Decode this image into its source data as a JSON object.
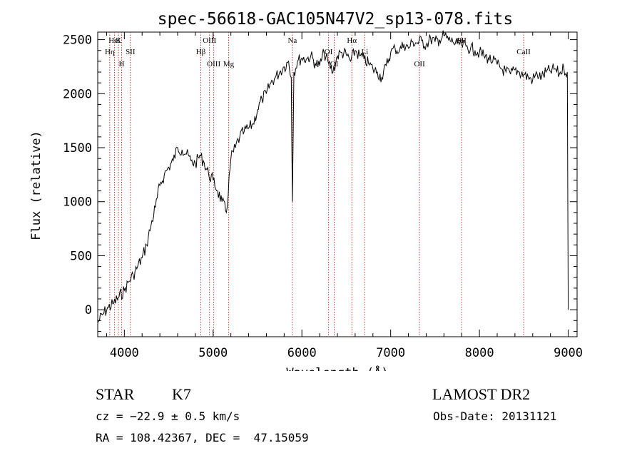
{
  "chart_data": {
    "type": "line",
    "title": "spec-56618-GAC105N47V2_sp13-078.fits",
    "xlabel": "Wavelength (Å)",
    "ylabel": "Flux (relative)",
    "xlim": [
      3700,
      9100
    ],
    "ylim": [
      -250,
      2570
    ],
    "xticks": [
      4000,
      5000,
      6000,
      7000,
      8000,
      9000
    ],
    "yticks": [
      0,
      500,
      1000,
      1500,
      2000,
      2500
    ],
    "xtick_labels": [
      "4000",
      "5000",
      "6000",
      "7000",
      "8000",
      "9000"
    ],
    "ytick_labels": [
      "0",
      "500",
      "1000",
      "1500",
      "2000",
      "2500"
    ],
    "series": [
      {
        "name": "flux",
        "x": [
          3700,
          3760,
          3820,
          3880,
          3940,
          4000,
          4050,
          4100,
          4150,
          4200,
          4250,
          4300,
          4350,
          4400,
          4450,
          4500,
          4550,
          4600,
          4650,
          4700,
          4750,
          4800,
          4850,
          4900,
          4950,
          5000,
          5050,
          5100,
          5150,
          5200,
          5250,
          5300,
          5350,
          5400,
          5450,
          5500,
          5550,
          5600,
          5650,
          5700,
          5750,
          5800,
          5850,
          5880,
          5893,
          5910,
          5950,
          6000,
          6050,
          6100,
          6150,
          6200,
          6250,
          6300,
          6350,
          6400,
          6450,
          6500,
          6550,
          6600,
          6650,
          6700,
          6750,
          6800,
          6850,
          6900,
          6950,
          7000,
          7050,
          7100,
          7150,
          7200,
          7250,
          7300,
          7350,
          7400,
          7450,
          7500,
          7550,
          7600,
          7650,
          7700,
          7750,
          7800,
          7850,
          7900,
          7950,
          8000,
          8050,
          8100,
          8150,
          8200,
          8250,
          8300,
          8350,
          8400,
          8450,
          8500,
          8550,
          8600,
          8650,
          8700,
          8750,
          8800,
          8850,
          8900,
          8950,
          8990,
          9000
        ],
        "y": [
          -120,
          -40,
          20,
          60,
          120,
          180,
          260,
          320,
          400,
          480,
          600,
          780,
          950,
          1150,
          1250,
          1320,
          1380,
          1500,
          1480,
          1440,
          1380,
          1350,
          1430,
          1360,
          1250,
          1200,
          1100,
          1000,
          900,
          1400,
          1500,
          1600,
          1650,
          1680,
          1720,
          1850,
          1950,
          2000,
          2100,
          2150,
          2200,
          2250,
          2300,
          2150,
          1000,
          2200,
          2300,
          2330,
          2320,
          2350,
          2280,
          2260,
          2380,
          2280,
          2200,
          2350,
          2380,
          2360,
          2300,
          2400,
          2350,
          2320,
          2280,
          2230,
          2200,
          2150,
          2260,
          2380,
          2420,
          2400,
          2460,
          2420,
          2480,
          2470,
          2490,
          2450,
          2510,
          2480,
          2500,
          2540,
          2500,
          2480,
          2460,
          2450,
          2440,
          2420,
          2400,
          2380,
          2350,
          2330,
          2300,
          2270,
          2230,
          2200,
          2180,
          2220,
          2200,
          2180,
          2150,
          2130,
          2180,
          2150,
          2200,
          2210,
          2230,
          2180,
          2240,
          2200,
          0
        ]
      }
    ],
    "lines": [
      {
        "label": "HeI",
        "x": 3889
      },
      {
        "label": "Hη",
        "x": 3835
      },
      {
        "label": "H",
        "x": 3969
      },
      {
        "label": "K",
        "x": 3934
      },
      {
        "label": "SII",
        "x": 4068
      },
      {
        "label": "OIII",
        "x": 5007
      },
      {
        "label": "OIII",
        "x": 4959
      },
      {
        "label": "Hβ",
        "x": 4861
      },
      {
        "label": "Mg",
        "x": 5175
      },
      {
        "label": "Na",
        "x": 5893
      },
      {
        "label": "OI",
        "x": 6300
      },
      {
        "label": "OI",
        "x": 6364
      },
      {
        "label": "Hα",
        "x": 6563
      },
      {
        "label": "Li",
        "x": 6708
      },
      {
        "label": "OII",
        "x": 7325
      },
      {
        "label": "SII",
        "x": 7800
      },
      {
        "label": "CaII",
        "x": 8498
      }
    ],
    "line_color": "#c0392b"
  },
  "info": {
    "object_type": "STAR",
    "subclass": "K7",
    "survey": "LAMOST DR2",
    "cz": "cz = −22.9 ± 0.5 km/s",
    "obs_date": "Obs-Date: 20131121",
    "radec": "RA = 108.42367, DEC =  47.15059"
  }
}
